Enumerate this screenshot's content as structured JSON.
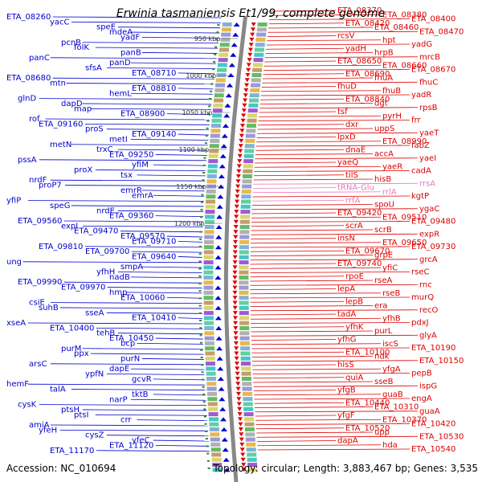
{
  "title": "Erwinia tasmaniensis Et1/99, complete genome",
  "footer": {
    "accession": "Accession: NC_010694",
    "stats": "Topology: circular; Length: 3,883,467 bp; Genes: 3,535"
  },
  "colors": {
    "left_strand": "#0000cc",
    "right_strand": "#dd0000",
    "rna": "#e87ab8",
    "backbone": "#888888",
    "tick": "#2a8a2a"
  },
  "kbp_marks": [
    "950 kbp",
    "1000 kbp",
    "1050 kbp",
    "1100 kbp",
    "1150 kbp",
    "1200 kbp"
  ],
  "left_labels": [
    "ETA_08260",
    "yacC",
    "speE",
    "mdeA",
    "yadF",
    "pcnB",
    "folK",
    "panB",
    "panC",
    "panD",
    "sfsA",
    "ETA_08710",
    "ETA_08680",
    "mtn",
    "ETA_08810",
    "hemL",
    "glnD",
    "dapD",
    "map",
    "ETA_08900",
    "rof",
    "ETA_09160",
    "proS",
    "ETA_09140",
    "metI",
    "metN",
    "trxC",
    "ETA_09250",
    "pssA",
    "yfiM",
    "proX",
    "tsx",
    "nrdF",
    "proP7",
    "emrR",
    "emrA",
    "yfiP",
    "speG",
    "nrdE",
    "ETA_09360",
    "ETA_09560",
    "expI",
    "ETA_09470",
    "ETA_09570",
    "ETA_09710",
    "ETA_09810",
    "ETA_09700",
    "ETA_09640",
    "ung",
    "smpA",
    "yfhH",
    "nadB",
    "ETA_09990",
    "ETA_09970",
    "hmp",
    "ETA_10060",
    "csiE",
    "suhB",
    "sseA",
    "ETA_10410",
    "xseA",
    "ETA_10400",
    "tehB",
    "ETA_10450",
    "bcp",
    "purM",
    "ppx",
    "purN",
    "arsC",
    "dapE",
    "ypfN",
    "gcvR",
    "hemF",
    "talA",
    "tktB",
    "narP",
    "cysK",
    "ptsH",
    "ptsI",
    "crr",
    "amiA",
    "yfeH",
    "cysZ",
    "yfeC",
    "ETA_11120",
    "ETA_11170"
  ],
  "right_labels": [
    "ETA_08370",
    "ETA_08380",
    "ETA_08400",
    "ETA_08420",
    "ETA_08460",
    "ETA_08470",
    "rcsV",
    "hpt",
    "yadG",
    "yadH",
    "hrpB",
    "mrcB",
    "ETA_08650",
    "ETA_08660",
    "ETA_08670",
    "ETA_08690",
    "fhuA",
    "fhuC",
    "fhuD",
    "fhuB",
    "yadR",
    "ETA_08840",
    "dgt",
    "rpsB",
    "tsf",
    "pyrH",
    "frr",
    "dxr",
    "uppS",
    "yaeT",
    "lpxD",
    "ETA_08990",
    "fabZ",
    "dnaE",
    "accA",
    "yaeI",
    "yaeQ",
    "yaeR",
    "cadA",
    "tilS",
    "hisB",
    "rrsA",
    "tRNA-Glu",
    "rrlA",
    "kgtP",
    "rrfA",
    "spoU",
    "ygaC",
    "ETA_09420",
    "ETA_09510",
    "ETA_09480",
    "scrA",
    "scrB",
    "expR",
    "insN",
    "ETA_09650",
    "ETA_09730",
    "ETA_09670",
    "grpE",
    "grcA",
    "ETA_09740",
    "yfiC",
    "rseC",
    "rpoE",
    "rseA",
    "rnc",
    "lepA",
    "rseB",
    "murQ",
    "lepB",
    "era",
    "recO",
    "tadA",
    "yfhB",
    "pdxJ",
    "yfhK",
    "purL",
    "glyA",
    "yfhG",
    "iscS",
    "ETA_10190",
    "ETA_10100",
    "ndk",
    "ETA_10150",
    "hisS",
    "yfgA",
    "pepB",
    "quiA",
    "sseB",
    "ispG",
    "yfgB",
    "guaB",
    "engA",
    "ETA_10440",
    "ETA_10310",
    "guaA",
    "yfgF",
    "ETA_10370",
    "ETA_10420",
    "ETA_10520",
    "upp",
    "ETA_10530",
    "dapA",
    "hda",
    "ETA_10540"
  ]
}
